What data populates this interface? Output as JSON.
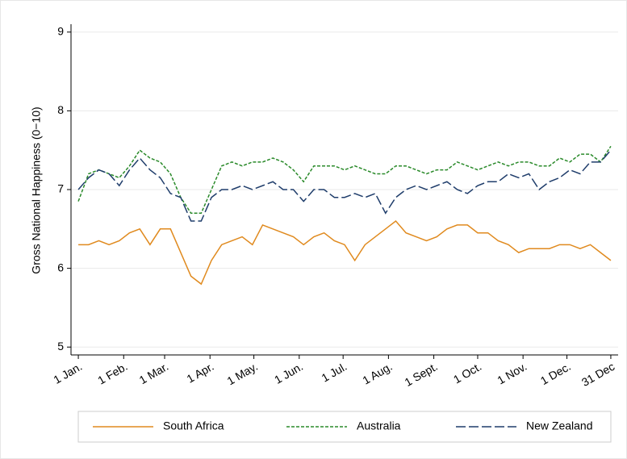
{
  "chart_data": {
    "type": "line",
    "y_label": "Gross National Happiness (0−10)",
    "x": [
      1,
      8,
      15,
      22,
      29,
      36,
      43,
      50,
      57,
      64,
      71,
      78,
      85,
      92,
      99,
      106,
      113,
      120,
      127,
      134,
      141,
      148,
      155,
      162,
      169,
      176,
      183,
      190,
      197,
      204,
      211,
      218,
      225,
      232,
      239,
      246,
      253,
      260,
      267,
      274,
      281,
      288,
      295,
      302,
      309,
      316,
      323,
      330,
      337,
      344,
      351,
      358,
      365
    ],
    "series": [
      {
        "name": "South Africa",
        "color": "#e08a1e",
        "dash": "none",
        "values": [
          6.3,
          6.3,
          6.35,
          6.3,
          6.35,
          6.45,
          6.5,
          6.3,
          6.5,
          6.5,
          6.2,
          5.9,
          5.8,
          6.1,
          6.3,
          6.35,
          6.4,
          6.3,
          6.55,
          6.5,
          6.45,
          6.4,
          6.3,
          6.4,
          6.45,
          6.35,
          6.3,
          6.1,
          6.3,
          6.4,
          6.5,
          6.6,
          6.45,
          6.4,
          6.35,
          6.4,
          6.5,
          6.55,
          6.55,
          6.45,
          6.45,
          6.35,
          6.3,
          6.2,
          6.25,
          6.25,
          6.25,
          6.3,
          6.3,
          6.25,
          6.3,
          6.2,
          6.1
        ]
      },
      {
        "name": "Australia",
        "color": "#2a8a2a",
        "dash": "4,2",
        "values": [
          6.85,
          7.2,
          7.25,
          7.2,
          7.15,
          7.3,
          7.5,
          7.4,
          7.35,
          7.2,
          6.9,
          6.7,
          6.7,
          7.0,
          7.3,
          7.35,
          7.3,
          7.35,
          7.35,
          7.4,
          7.35,
          7.25,
          7.1,
          7.3,
          7.3,
          7.3,
          7.25,
          7.3,
          7.25,
          7.2,
          7.2,
          7.3,
          7.3,
          7.25,
          7.2,
          7.25,
          7.25,
          7.35,
          7.3,
          7.25,
          7.3,
          7.35,
          7.3,
          7.35,
          7.35,
          7.3,
          7.3,
          7.4,
          7.35,
          7.45,
          7.45,
          7.35,
          7.55
        ]
      },
      {
        "name": "New Zealand",
        "color": "#1f3d6b",
        "dash": "12,4",
        "values": [
          7.0,
          7.15,
          7.25,
          7.2,
          7.05,
          7.25,
          7.4,
          7.25,
          7.15,
          6.95,
          6.9,
          6.6,
          6.6,
          6.9,
          7.0,
          7.0,
          7.05,
          7.0,
          7.05,
          7.1,
          7.0,
          7.0,
          6.85,
          7.0,
          7.0,
          6.9,
          6.9,
          6.95,
          6.9,
          6.95,
          6.7,
          6.9,
          7.0,
          7.05,
          7.0,
          7.05,
          7.1,
          7.0,
          6.95,
          7.05,
          7.1,
          7.1,
          7.2,
          7.15,
          7.2,
          7.0,
          7.1,
          7.15,
          7.25,
          7.2,
          7.35,
          7.35,
          7.5
        ]
      }
    ],
    "xlim": [
      -4,
      370
    ],
    "xticks": [
      {
        "value": 1,
        "label": "1 Jan."
      },
      {
        "value": 32,
        "label": "1 Feb."
      },
      {
        "value": 60,
        "label": "1 Mar."
      },
      {
        "value": 91,
        "label": "1 Apr."
      },
      {
        "value": 121,
        "label": "1 May."
      },
      {
        "value": 152,
        "label": "1 Jun."
      },
      {
        "value": 182,
        "label": "1 Jul."
      },
      {
        "value": 213,
        "label": "1 Aug."
      },
      {
        "value": 244,
        "label": "1 Sept."
      },
      {
        "value": 274,
        "label": "1 Oct."
      },
      {
        "value": 305,
        "label": "1 Nov."
      },
      {
        "value": 335,
        "label": "1 Dec."
      },
      {
        "value": 365,
        "label": "31 Dec"
      }
    ],
    "ylim": [
      4.9,
      9.1
    ],
    "yticks": [
      5,
      6,
      7,
      8,
      9
    ],
    "grid": true,
    "legend": "bottom"
  }
}
